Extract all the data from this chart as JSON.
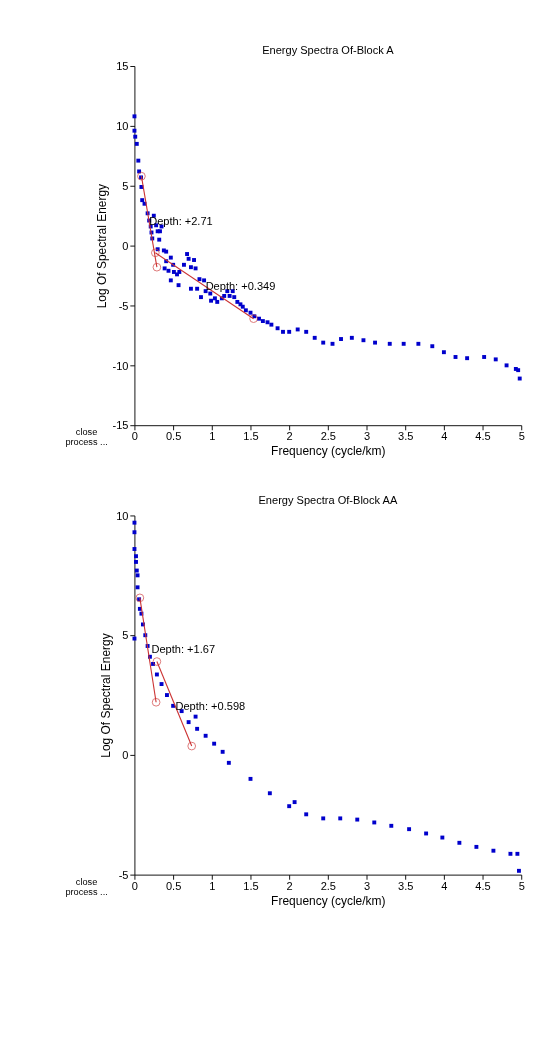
{
  "chart_data": [
    {
      "type": "scatter",
      "title": "Energy Spectra Of-Block A",
      "xlabel": "Frequency (cycle/km)",
      "ylabel": "Log Of Spectral Energy",
      "xlim": [
        0,
        5
      ],
      "xticks": [
        0,
        0.5,
        1,
        1.5,
        2,
        2.5,
        3,
        3.5,
        4,
        4.5,
        5
      ],
      "ylim": [
        -15,
        15
      ],
      "yticks": [
        -15,
        -10,
        -5,
        0,
        5,
        10,
        15
      ],
      "grid": false,
      "legend": false,
      "series": [
        {
          "type": "scatter",
          "marker": "square",
          "color": "#0000cc",
          "x": [
            0,
            0,
            0.01,
            0.03,
            0.05,
            0.06,
            0.085,
            0.09,
            0.1,
            0.13,
            0.17,
            0.19,
            0.21,
            0.22,
            0.23,
            0.25,
            0.28,
            0.3,
            0.33,
            0.35,
            0.32,
            0.3,
            0.38,
            0.41,
            0.41,
            0.39,
            0.47,
            0.44,
            0.5,
            0.51,
            0.47,
            0.55,
            0.58,
            0.57,
            0.64,
            0.68,
            0.7,
            0.73,
            0.77,
            0.79,
            0.73,
            0.81,
            0.84,
            0.86,
            0.9,
            0.92,
            0.98,
            0.99,
            1.04,
            1.07,
            1.13,
            1.16,
            1.2,
            1.23,
            1.27,
            1.29,
            1.33,
            1.37,
            1.4,
            1.44,
            1.5,
            1.55,
            1.61,
            1.66,
            1.72,
            1.77,
            1.85,
            1.92,
            2.0,
            2.11,
            2.22,
            2.33,
            2.44,
            2.56,
            2.67,
            2.81,
            2.96,
            3.11,
            3.3,
            3.48,
            3.67,
            3.85,
            4.0,
            4.15,
            4.3,
            4.52,
            4.67,
            4.81,
            4.93,
            4.96,
            4.98
          ],
          "values": [
            10.8,
            9.6,
            9.1,
            8.5,
            7.1,
            6.2,
            5.7,
            4.9,
            3.8,
            3.5,
            2.7,
            2.1,
            1.6,
            1.1,
            0.6,
            2.5,
            1.7,
            1.2,
            1.2,
            1.6,
            0.5,
            -0.3,
            -0.4,
            -0.5,
            -1.3,
            -1.9,
            -1.0,
            -2.1,
            -1.6,
            -2.2,
            -2.9,
            -2.4,
            -2.2,
            -3.3,
            -1.6,
            -0.7,
            -1.1,
            -1.8,
            -1.2,
            -1.9,
            -3.6,
            -3.6,
            -2.8,
            -4.3,
            -2.9,
            -3.8,
            -4.0,
            -4.6,
            -4.4,
            -4.7,
            -4.4,
            -4.2,
            -3.8,
            -4.2,
            -3.8,
            -4.3,
            -4.7,
            -4.9,
            -5.1,
            -5.4,
            -5.6,
            -5.9,
            -6.1,
            -6.3,
            -6.4,
            -6.6,
            -6.9,
            -7.2,
            -7.2,
            -7.0,
            -7.2,
            -7.7,
            -8.1,
            -8.2,
            -7.8,
            -7.7,
            -7.9,
            -8.1,
            -8.2,
            -8.2,
            -8.2,
            -8.4,
            -8.9,
            -9.3,
            -9.4,
            -9.3,
            -9.5,
            -10.0,
            -10.3,
            -10.4,
            -11.1
          ]
        },
        {
          "type": "line",
          "marker": "circle",
          "color": "#cc3333",
          "x": [
            0.09,
            0.29
          ],
          "values": [
            5.8,
            -1.8
          ]
        },
        {
          "type": "line",
          "marker": "circle",
          "color": "#cc3333",
          "x": [
            0.27,
            1.54
          ],
          "values": [
            -0.6,
            -6.1
          ]
        }
      ],
      "annotations": [
        {
          "text": "Depth: +2.71",
          "x": 0.19,
          "y": 2.0
        },
        {
          "text": "Depth: +0.349",
          "x": 0.92,
          "y": -3.4
        },
        "close",
        "process ..."
      ]
    },
    {
      "type": "scatter",
      "title": "Energy Spectra Of-Block AA",
      "xlabel": "Frequency (cycle/km)",
      "ylabel": "Log Of Spectral Energy",
      "xlim": [
        0,
        5
      ],
      "xticks": [
        0,
        0.5,
        1,
        1.5,
        2,
        2.5,
        3,
        3.5,
        4,
        4.5,
        5
      ],
      "ylim": [
        -5,
        10
      ],
      "yticks": [
        -5,
        0,
        5,
        10
      ],
      "grid": false,
      "legend": false,
      "series": [
        {
          "type": "scatter",
          "marker": "square",
          "color": "#0000cc",
          "x": [
            0,
            0,
            0,
            0.02,
            0.02,
            0.03,
            0.04,
            0.04,
            0,
            0.06,
            0.07,
            0.09,
            0.11,
            0.14,
            0.17,
            0.2,
            0.24,
            0.29,
            0.35,
            0.42,
            0.5,
            0.61,
            0.7,
            0.79,
            0.81,
            0.92,
            1.03,
            1.14,
            1.22,
            1.5,
            1.75,
            2.0,
            2.07,
            2.22,
            2.44,
            2.66,
            2.88,
            3.1,
            3.32,
            3.55,
            3.77,
            3.98,
            4.2,
            4.42,
            4.64,
            4.86,
            4.95,
            4.97
          ],
          "values": [
            9.7,
            9.3,
            8.6,
            8.3,
            8.06,
            7.7,
            7.5,
            7.0,
            4.86,
            6.5,
            6.1,
            5.9,
            5.45,
            5.0,
            4.55,
            4.1,
            3.8,
            3.36,
            2.96,
            2.5,
            2.05,
            1.83,
            1.37,
            1.6,
            1.09,
            0.8,
            0.47,
            0.13,
            -0.33,
            -1.0,
            -1.6,
            -2.14,
            -1.97,
            -2.48,
            -2.65,
            -2.65,
            -2.7,
            -2.82,
            -2.96,
            -3.1,
            -3.28,
            -3.45,
            -3.67,
            -3.84,
            -4.0,
            -4.13,
            -4.13,
            -4.84
          ]
        },
        {
          "type": "line",
          "marker": "circle",
          "color": "#cc3333",
          "x": [
            0.07,
            0.28
          ],
          "values": [
            6.56,
            2.2
          ]
        },
        {
          "type": "line",
          "marker": "circle",
          "color": "#cc3333",
          "x": [
            0.29,
            0.74
          ],
          "values": [
            3.9,
            0.37
          ]
        }
      ],
      "annotations": [
        {
          "text": "Depth: +1.67",
          "x": 0.22,
          "y": 4.4
        },
        {
          "text": "Depth: +0.598",
          "x": 0.53,
          "y": 2.05
        },
        "close",
        "process ..."
      ]
    }
  ]
}
